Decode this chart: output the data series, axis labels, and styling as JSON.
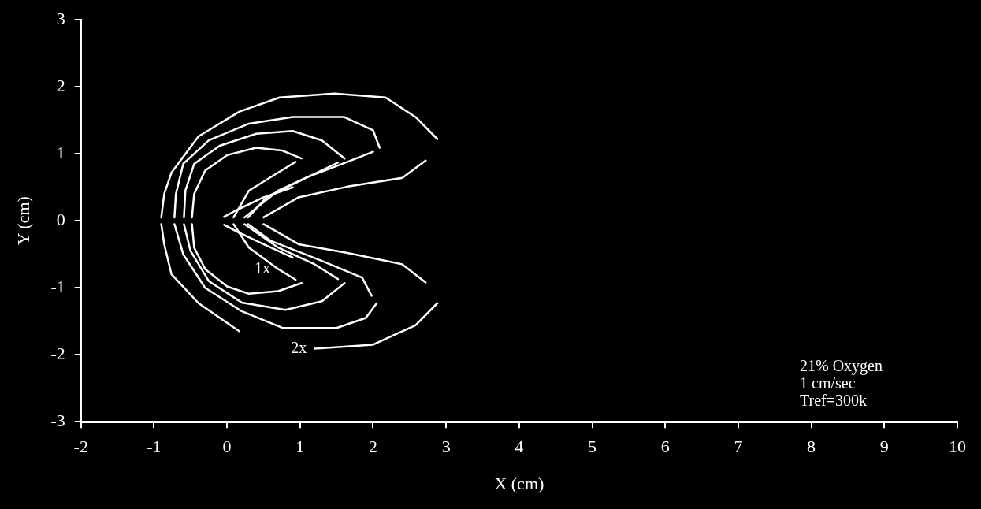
{
  "chart_data": {
    "type": "line",
    "xlabel": "X (cm)",
    "ylabel": "Y (cm)",
    "xlim": [
      -2,
      10
    ],
    "ylim": [
      -3,
      3
    ],
    "xticks": [
      -2,
      -1,
      0,
      1,
      2,
      3,
      4,
      5,
      6,
      7,
      8,
      9,
      10
    ],
    "yticks": [
      -3,
      -2,
      -1,
      0,
      1,
      2,
      3
    ],
    "grid": false,
    "legend": false,
    "marker": "none",
    "line_style": "solid",
    "series": [
      {
        "color": "#ffffff",
        "x": [
          -0.9,
          -0.86,
          -0.76,
          -0.39,
          0.17,
          0.72,
          1.47,
          2.17,
          2.58,
          2.88
        ],
        "values": [
          0.05,
          0.4,
          0.72,
          1.26,
          1.63,
          1.84,
          1.9,
          1.84,
          1.55,
          1.22
        ]
      },
      {
        "color": "#ffffff",
        "x": [
          0.5,
          0.98,
          1.65,
          2.4,
          2.72
        ],
        "values": [
          0.05,
          0.35,
          0.51,
          0.64,
          0.9
        ]
      },
      {
        "color": "#ffffff",
        "x": [
          0.5,
          0.98,
          1.65,
          2.4,
          2.72
        ],
        "values": [
          -0.05,
          -0.35,
          -0.48,
          -0.65,
          -0.92
        ]
      },
      {
        "color": "#ffffff",
        "x": [
          -0.9,
          -0.86,
          -0.76,
          -0.39,
          0.17
        ],
        "values": [
          -0.05,
          -0.35,
          -0.8,
          -1.23,
          -1.65
        ]
      },
      {
        "color": "#ffffff",
        "x": [
          1.2,
          2.0,
          2.58,
          2.88
        ],
        "values": [
          -1.91,
          -1.85,
          -1.56,
          -1.23
        ]
      },
      {
        "color": "#ffffff",
        "x": [
          -0.72,
          -0.7,
          -0.6,
          -0.25,
          0.3,
          0.9,
          1.6,
          2.0,
          2.09
        ],
        "values": [
          0.05,
          0.4,
          0.85,
          1.2,
          1.45,
          1.55,
          1.55,
          1.35,
          1.09
        ]
      },
      {
        "color": "#ffffff",
        "x": [
          0.29,
          0.54,
          1.1,
          1.65,
          2.0
        ],
        "values": [
          0.05,
          0.35,
          0.65,
          0.88,
          1.03
        ]
      },
      {
        "color": "#ffffff",
        "x": [
          0.29,
          0.6,
          1.3,
          1.85,
          1.98
        ],
        "values": [
          -0.05,
          -0.3,
          -0.6,
          -0.85,
          -1.12
        ]
      },
      {
        "color": "#ffffff",
        "x": [
          -0.72,
          -0.6,
          -0.3,
          0.2,
          0.76,
          1.5,
          1.9,
          2.05
        ],
        "values": [
          -0.05,
          -0.5,
          -1.0,
          -1.35,
          -1.6,
          -1.6,
          -1.45,
          -1.23
        ]
      },
      {
        "color": "#ffffff",
        "x": [
          -0.59,
          -0.57,
          -0.45,
          -0.1,
          0.4,
          0.9,
          1.3,
          1.61
        ],
        "values": [
          0.05,
          0.45,
          0.85,
          1.12,
          1.3,
          1.34,
          1.2,
          0.93
        ]
      },
      {
        "color": "#ffffff",
        "x": [
          0.24,
          0.7,
          1.2,
          1.52
        ],
        "values": [
          0.05,
          0.45,
          0.7,
          0.87
        ]
      },
      {
        "color": "#ffffff",
        "x": [
          0.24,
          0.7,
          1.2,
          1.52
        ],
        "values": [
          -0.05,
          -0.4,
          -0.65,
          -0.87
        ]
      },
      {
        "color": "#ffffff",
        "x": [
          -0.59,
          -0.5,
          -0.25,
          0.2,
          0.8,
          1.3,
          1.61
        ],
        "values": [
          -0.05,
          -0.45,
          -0.9,
          -1.22,
          -1.33,
          -1.2,
          -0.93
        ]
      },
      {
        "color": "#ffffff",
        "x": [
          -0.48,
          -0.45,
          -0.3,
          0.0,
          0.4,
          0.75,
          1.02
        ],
        "values": [
          0.05,
          0.4,
          0.75,
          0.98,
          1.09,
          1.05,
          0.93
        ]
      },
      {
        "color": "#ffffff",
        "x": [
          0.09,
          0.3,
          0.7,
          0.94
        ],
        "values": [
          0.05,
          0.45,
          0.72,
          0.88
        ]
      },
      {
        "color": "#ffffff",
        "x": [
          0.09,
          0.3,
          0.7,
          0.94
        ],
        "values": [
          -0.05,
          -0.4,
          -0.72,
          -0.88
        ]
      },
      {
        "color": "#ffffff",
        "x": [
          -0.48,
          -0.45,
          -0.3,
          0.0,
          0.3,
          0.7,
          1.02
        ],
        "values": [
          -0.05,
          -0.4,
          -0.72,
          -0.98,
          -1.09,
          -1.05,
          -0.93
        ]
      },
      {
        "color": "#ffffff",
        "x": [
          -0.04,
          0.15,
          0.5,
          0.9
        ],
        "values": [
          0.06,
          0.17,
          0.35,
          0.5
        ]
      },
      {
        "color": "#ffffff",
        "x": [
          -0.04,
          0.15,
          0.5,
          0.9
        ],
        "values": [
          -0.06,
          -0.17,
          -0.35,
          -0.55
        ]
      }
    ],
    "annotations": [
      {
        "text": "1x",
        "x": 0.7,
        "y": -0.72
      },
      {
        "text": "2x",
        "x": 1.2,
        "y": -1.91
      },
      "21% Oxygen",
      "1 cm/sec",
      "Tref=300k"
    ]
  }
}
